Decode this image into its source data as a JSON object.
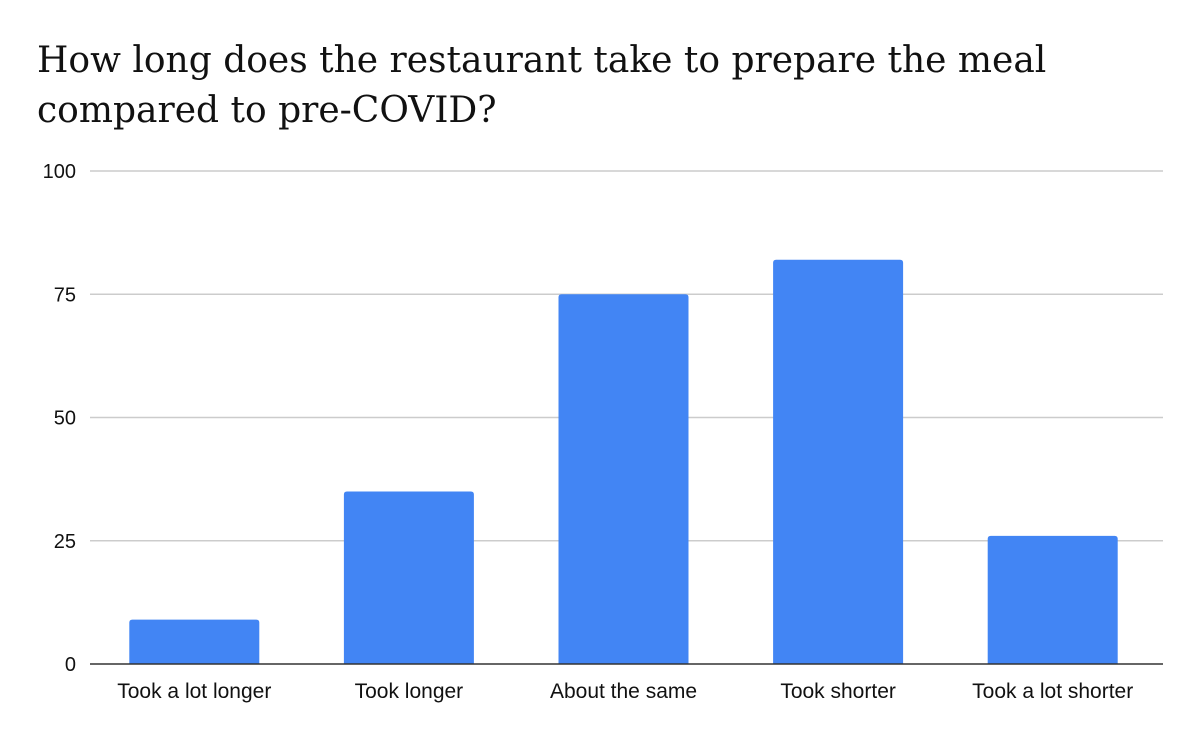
{
  "chart_data": {
    "type": "bar",
    "title": "How long does the restaurant take to prepare the meal compared to pre-COVID?",
    "xlabel": "",
    "ylabel": "",
    "categories": [
      "Took a lot longer",
      "Took longer",
      "About the same",
      "Took shorter",
      "Took a lot shorter"
    ],
    "values": [
      9,
      35,
      75,
      82,
      26
    ],
    "ylim": [
      0,
      100
    ],
    "yticks": [
      "0",
      "25",
      "50",
      "75",
      "100"
    ],
    "grid": true,
    "bar_color": "#4285F4"
  }
}
